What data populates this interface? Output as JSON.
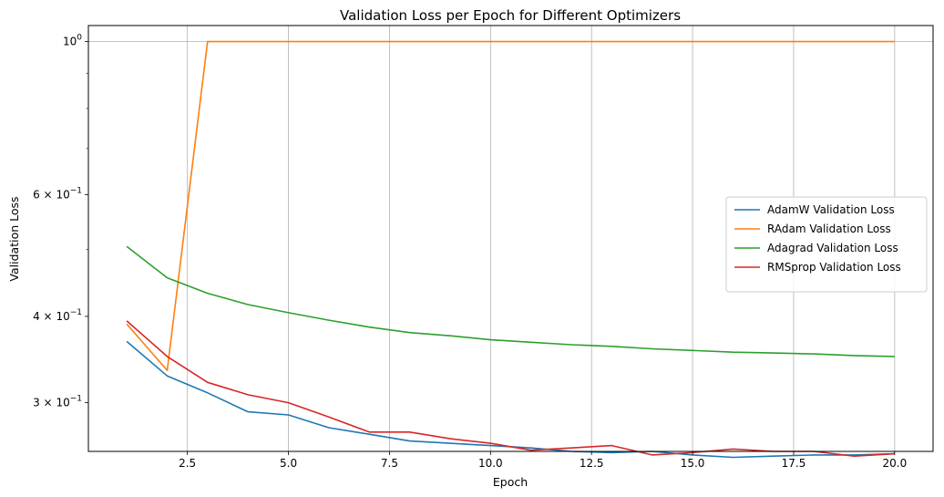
{
  "chart_data": {
    "type": "line",
    "title": "Validation Loss per Epoch for Different Optimizers",
    "xlabel": "Epoch",
    "ylabel": "Validation Loss",
    "xlim": [
      0.05,
      20.95
    ],
    "ylim": [
      0.255,
      1.055
    ],
    "yscale": "log",
    "grid": "vertical major x and y=1",
    "x_ticks": [
      2.5,
      5.0,
      7.5,
      10.0,
      12.5,
      15.0,
      17.5,
      20.0
    ],
    "x_tick_labels": [
      "2.5",
      "5.0",
      "7.5",
      "10.0",
      "12.5",
      "15.0",
      "17.5",
      "20.0"
    ],
    "y_ticks": [
      {
        "value": 1.0,
        "base": "10",
        "exp": "0",
        "coef": ""
      },
      {
        "value": 0.6,
        "base": "10",
        "exp": "−1",
        "coef": "6 × "
      },
      {
        "value": 0.4,
        "base": "10",
        "exp": "−1",
        "coef": "4 × "
      },
      {
        "value": 0.3,
        "base": "10",
        "exp": "−1",
        "coef": "3 × "
      }
    ],
    "y_minor_ticks": [
      0.9,
      0.8,
      0.7,
      0.5
    ],
    "legend_position": "center-right",
    "x": [
      1,
      2,
      3,
      4,
      5,
      6,
      7,
      8,
      9,
      10,
      11,
      12,
      13,
      14,
      15,
      16,
      17,
      18,
      19,
      20
    ],
    "series": [
      {
        "name": "AdamW Validation Loss",
        "color": "#1f77b4",
        "values": [
          0.368,
          0.328,
          0.31,
          0.291,
          0.288,
          0.276,
          0.27,
          0.264,
          0.262,
          0.26,
          0.258,
          0.255,
          0.254,
          0.255,
          0.252,
          0.25,
          0.251,
          0.252,
          0.252,
          0.253
        ]
      },
      {
        "name": "RAdam Validation Loss",
        "color": "#ff7f0e",
        "values": [
          0.39,
          0.334,
          1.0,
          1.0,
          1.0,
          1.0,
          1.0,
          1.0,
          1.0,
          1.0,
          1.0,
          1.0,
          1.0,
          1.0,
          1.0,
          1.0,
          1.0,
          1.0,
          1.0,
          1.0
        ]
      },
      {
        "name": "Adagrad Validation Loss",
        "color": "#2ca02c",
        "values": [
          0.505,
          0.455,
          0.432,
          0.416,
          0.405,
          0.395,
          0.386,
          0.379,
          0.375,
          0.37,
          0.367,
          0.364,
          0.362,
          0.359,
          0.357,
          0.355,
          0.354,
          0.353,
          0.351,
          0.35
        ]
      },
      {
        "name": "RMSprop Validation Loss",
        "color": "#d62728",
        "values": [
          0.394,
          0.35,
          0.321,
          0.308,
          0.3,
          0.286,
          0.272,
          0.272,
          0.266,
          0.262,
          0.256,
          0.258,
          0.26,
          0.252,
          0.254,
          0.257,
          0.255,
          0.255,
          0.251,
          0.253
        ]
      }
    ]
  }
}
